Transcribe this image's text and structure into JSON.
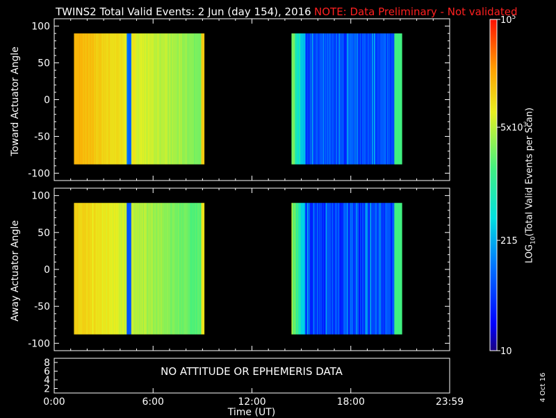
{
  "title": "TWINS2 Total Valid Events:  2 Jun (day 154), 2016",
  "note": "NOTE: Data Preliminary - Not validated",
  "colors": {
    "title": "#ffffff",
    "note": "#ff2020",
    "background": "#000000",
    "axes": "#ffffff"
  },
  "chart_data": [
    {
      "type": "heatmap",
      "ylabel": "Toward Actuator Angle",
      "ylim": [
        -110,
        110
      ],
      "yticks": [
        100,
        50,
        0,
        -50,
        -100
      ],
      "xlim_hours": [
        0,
        24
      ],
      "data_ranges_hours": [
        [
          1.2,
          9.1
        ],
        [
          14.4,
          21.1
        ]
      ],
      "angle_range": [
        -88,
        90
      ],
      "value_scale": "log10",
      "value_range": [
        10,
        100000
      ]
    },
    {
      "type": "heatmap",
      "ylabel": "Away Actuator Angle",
      "ylim": [
        -110,
        110
      ],
      "yticks": [
        100,
        50,
        0,
        -50,
        -100
      ],
      "xlim_hours": [
        0,
        24
      ],
      "data_ranges_hours": [
        [
          1.2,
          9.1
        ],
        [
          14.4,
          21.1
        ]
      ],
      "angle_range": [
        -88,
        90
      ],
      "value_scale": "log10",
      "value_range": [
        10,
        100000
      ]
    }
  ],
  "bottom_panel": {
    "yticks": [
      "8",
      "6",
      "4",
      "2"
    ],
    "message": "NO ATTITUDE OR EPHEMERIS DATA"
  },
  "xaxis": {
    "ticks": [
      "0:00",
      "6:00",
      "12:00",
      "18:00",
      "23:59"
    ],
    "tick_hours": [
      0,
      6,
      12,
      18,
      24
    ],
    "label": "Time (UT)"
  },
  "colorbar": {
    "ticks": [
      {
        "base": "10",
        "exp": "5",
        "value": 100000
      },
      {
        "base": "5x10",
        "exp": "3",
        "value": 5000
      },
      {
        "base": "215",
        "exp": "",
        "value": 215
      },
      {
        "base": "10",
        "exp": "",
        "value": 10
      }
    ],
    "label_main": "LOG",
    "label_sub": "10",
    "label_rest": "(Total Valid  Events per Scan)"
  },
  "date_stamp": "4 Oct 16"
}
